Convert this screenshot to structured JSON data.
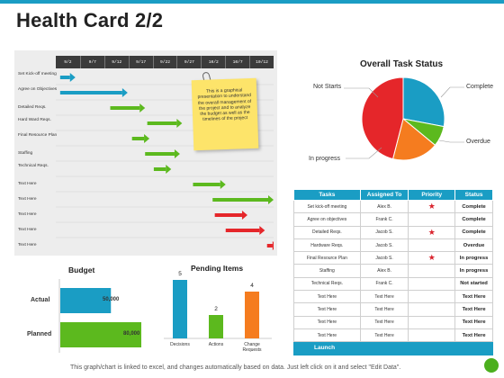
{
  "title": "Health Card 2/2",
  "gantt": {
    "dates": [
      "9/2",
      "9/7",
      "9/12",
      "9/17",
      "9/22",
      "9/27",
      "10/2",
      "10/7",
      "10/12"
    ],
    "tasks": [
      {
        "label": "Set Kick-off meeting",
        "color": "#1a9dc4",
        "start": 0.02,
        "len": 0.07
      },
      {
        "label": "Agree on Objectives",
        "color": "#1a9dc4",
        "start": 0.02,
        "len": 0.31
      },
      {
        "label": "Detailed Reqs.",
        "color": "#5cb91e",
        "start": 0.25,
        "len": 0.16
      },
      {
        "label": "Hard Ward Reqs.",
        "color": "#5cb91e",
        "start": 0.42,
        "len": 0.16
      },
      {
        "label": "Final Resource Plan",
        "color": "#5cb91e",
        "start": 0.35,
        "len": 0.08
      },
      {
        "label": "Staffing",
        "color": "#5cb91e",
        "start": 0.41,
        "len": 0.16
      },
      {
        "label": "Technical Reqs.",
        "color": "#5cb91e",
        "start": 0.45,
        "len": 0.08
      },
      {
        "label": "Text Here",
        "color": "#5cb91e",
        "start": 0.63,
        "len": 0.15
      },
      {
        "label": "Text Here",
        "color": "#5cb91e",
        "start": 0.72,
        "len": 0.28
      },
      {
        "label": "Text Here",
        "color": "#e5262a",
        "start": 0.73,
        "len": 0.15
      },
      {
        "label": "Text Here",
        "color": "#e5262a",
        "start": 0.78,
        "len": 0.18
      },
      {
        "label": "Text Here",
        "color": "#e5262a",
        "start": 0.97,
        "len": 0.05
      }
    ],
    "note": "This is a graphical presentation to understand the overall management of the project and to analyze the budget as well as the timelines of the project"
  },
  "budget": {
    "title": "Budget",
    "actual_label": "Actual",
    "planned_label": "Planned",
    "actual_value_label": "50,000",
    "planned_value_label": "80,000"
  },
  "pending": {
    "title": "Pending Items"
  },
  "pie": {
    "title": "Overall Task Status",
    "labels": {
      "not_started": "Not Starts",
      "complete": "Complete",
      "overdue": "Overdue",
      "in_progress": "In progress"
    }
  },
  "chart_data": [
    {
      "type": "bar",
      "orientation": "horizontal",
      "title": "Budget",
      "categories": [
        "Actual",
        "Planned"
      ],
      "values": [
        50000,
        80000
      ],
      "colors": [
        "#1a9dc4",
        "#5cb91e"
      ]
    },
    {
      "type": "bar",
      "title": "Pending Items",
      "categories": [
        "Decisions",
        "Actions",
        "Change Requests"
      ],
      "values": [
        5,
        2,
        4
      ],
      "colors": [
        "#1a9dc4",
        "#5cb91e",
        "#f57c1f"
      ],
      "ylim": [
        0,
        5.5
      ]
    },
    {
      "type": "pie",
      "title": "Overall Task Status",
      "categories": [
        "Complete",
        "Overdue",
        "In progress",
        "Not Starts"
      ],
      "values": [
        28,
        8,
        18,
        46
      ],
      "colors": [
        "#1a9dc4",
        "#5cb91e",
        "#f57c1f",
        "#e5262a"
      ]
    }
  ],
  "table": {
    "headers": [
      "Tasks",
      "Assigned To",
      "Priority",
      "Status"
    ],
    "rows": [
      {
        "task": "Set kick-off meeting",
        "assigned": "Alex B.",
        "priority": true,
        "status": "Complete"
      },
      {
        "task": "Agree on objectives",
        "assigned": "Frank C.",
        "priority": false,
        "status": "Complete"
      },
      {
        "task": "Detailed Reqs.",
        "assigned": "Jacob S.",
        "priority": true,
        "status": "Complete"
      },
      {
        "task": "Hardware Reqs.",
        "assigned": "Jacob S.",
        "priority": false,
        "status": "Overdue"
      },
      {
        "task": "Final Resource Plan",
        "assigned": "Jacob S.",
        "priority": true,
        "status": "In progress"
      },
      {
        "task": "Staffing",
        "assigned": "Alex B.",
        "priority": false,
        "status": "In progress"
      },
      {
        "task": "Technical Reqs.",
        "assigned": "Frank C.",
        "priority": false,
        "status": "Not started"
      },
      {
        "task": "Text Here",
        "assigned": "Text Here",
        "priority": false,
        "status": "Text Here"
      },
      {
        "task": "Text Here",
        "assigned": "Text Here",
        "priority": false,
        "status": "Text Here"
      },
      {
        "task": "Text Here",
        "assigned": "Text Here",
        "priority": false,
        "status": "Text Here"
      },
      {
        "task": "Text Here",
        "assigned": "Text Here",
        "priority": false,
        "status": "Text Here"
      }
    ],
    "launch_label": "Launch"
  },
  "footer": "This graph/chart is linked to excel, and changes automatically based on data. Just left click on it and select \"Edit Data\"."
}
